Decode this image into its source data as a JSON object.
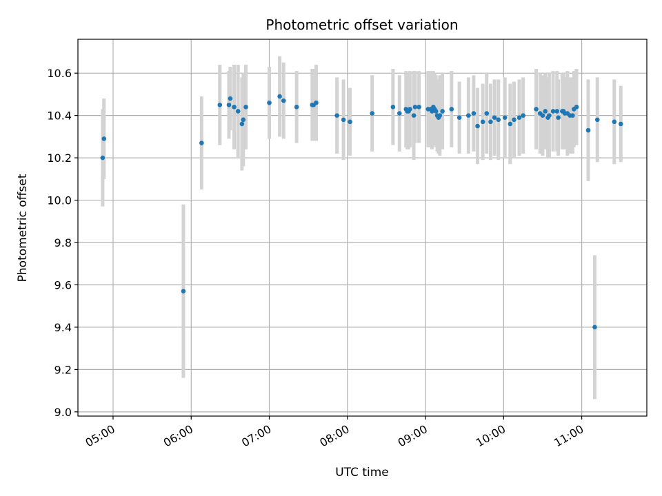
{
  "chart_data": {
    "type": "scatter",
    "title": "Photometric offset variation",
    "xlabel": "UTC time",
    "ylabel": "Photometric offset",
    "grid": true,
    "xlim": [
      "04:33",
      "11:50"
    ],
    "ylim": [
      8.98,
      10.76
    ],
    "x_ticks": [
      "05:00",
      "06:00",
      "07:00",
      "08:00",
      "09:00",
      "10:00",
      "11:00"
    ],
    "y_ticks": [
      "9.0",
      "9.2",
      "9.4",
      "9.6",
      "9.8",
      "10.0",
      "10.2",
      "10.4",
      "10.6"
    ],
    "series": [
      {
        "x": [
          "04:52",
          "04:53",
          "05:54",
          "06:08",
          "06:22",
          "06:29",
          "06:30",
          "06:33",
          "06:36",
          "06:39",
          "06:40",
          "06:42",
          "07:00",
          "07:08",
          "07:11",
          "07:21",
          "07:33",
          "07:34",
          "07:36",
          "07:52",
          "07:57",
          "08:02",
          "08:19",
          "08:35",
          "08:40",
          "08:45",
          "08:46",
          "08:47",
          "08:48",
          "08:51",
          "08:52",
          "08:55",
          "09:02",
          "09:04",
          "09:05",
          "09:06",
          "09:07",
          "09:08",
          "09:09",
          "09:10",
          "09:11",
          "09:13",
          "09:20",
          "09:26",
          "09:33",
          "09:37",
          "09:40",
          "09:44",
          "09:47",
          "09:50",
          "09:53",
          "09:56",
          "10:01",
          "10:05",
          "10:08",
          "10:12",
          "10:15",
          "10:25",
          "10:28",
          "10:30",
          "10:32",
          "10:34",
          "10:35",
          "10:38",
          "10:41",
          "10:42",
          "10:45",
          "10:46",
          "10:47",
          "10:49",
          "10:51",
          "10:53",
          "10:54",
          "10:56",
          "11:05",
          "11:10",
          "11:12",
          "11:25",
          "11:30"
        ],
        "y": [
          10.2,
          10.29,
          9.57,
          10.27,
          10.45,
          10.45,
          10.48,
          10.44,
          10.42,
          10.36,
          10.38,
          10.44,
          10.46,
          10.49,
          10.47,
          10.44,
          10.45,
          10.45,
          10.46,
          10.4,
          10.38,
          10.37,
          10.41,
          10.44,
          10.41,
          10.43,
          10.42,
          10.42,
          10.43,
          10.4,
          10.44,
          10.44,
          10.43,
          10.43,
          10.42,
          10.44,
          10.43,
          10.42,
          10.4,
          10.39,
          10.4,
          10.42,
          10.43,
          10.39,
          10.4,
          10.41,
          10.35,
          10.37,
          10.41,
          10.37,
          10.39,
          10.38,
          10.39,
          10.36,
          10.38,
          10.39,
          10.4,
          10.43,
          10.41,
          10.4,
          10.42,
          10.39,
          10.4,
          10.42,
          10.42,
          10.39,
          10.42,
          10.42,
          10.41,
          10.41,
          10.4,
          10.4,
          10.43,
          10.44,
          10.33,
          9.4,
          10.38,
          10.37,
          10.36
        ],
        "err": [
          0.23,
          0.19,
          0.41,
          0.22,
          0.19,
          0.16,
          0.15,
          0.2,
          0.22,
          0.22,
          0.22,
          0.2,
          0.17,
          0.19,
          0.18,
          0.17,
          0.17,
          0.17,
          0.18,
          0.18,
          0.19,
          0.16,
          0.18,
          0.18,
          0.18,
          0.18,
          0.18,
          0.18,
          0.18,
          0.21,
          0.17,
          0.17,
          0.18,
          0.18,
          0.18,
          0.17,
          0.17,
          0.17,
          0.17,
          0.17,
          0.19,
          0.18,
          0.18,
          0.17,
          0.18,
          0.18,
          0.18,
          0.18,
          0.19,
          0.18,
          0.18,
          0.19,
          0.19,
          0.19,
          0.18,
          0.18,
          0.18,
          0.19,
          0.19,
          0.19,
          0.18,
          0.19,
          0.2,
          0.19,
          0.19,
          0.18,
          0.18,
          0.18,
          0.17,
          0.2,
          0.18,
          0.18,
          0.18,
          0.18,
          0.24,
          0.34,
          0.2,
          0.2,
          0.18
        ]
      }
    ]
  }
}
